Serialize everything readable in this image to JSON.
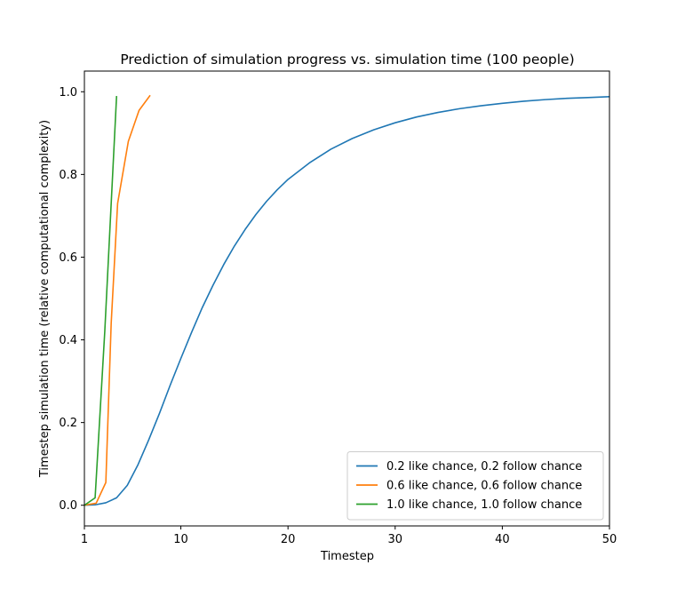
{
  "chart_data": {
    "type": "line",
    "title": "Prediction of simulation progress vs. simulation time (100 people)",
    "xlabel": "Timestep",
    "ylabel": "Timestep simulation time (relative computational complexity)",
    "xlim": [
      1,
      50
    ],
    "ylim": [
      -0.05,
      1.05
    ],
    "x_ticks": [
      1,
      10,
      20,
      30,
      40,
      50
    ],
    "y_ticks": [
      0.0,
      0.2,
      0.4,
      0.6,
      0.8,
      1.0
    ],
    "y_tick_labels": [
      "0.0",
      "0.2",
      "0.4",
      "0.6",
      "0.8",
      "1.0"
    ],
    "legend_position": "lower-right",
    "series": [
      {
        "name": "0.2 like chance, 0.2 follow chance",
        "color": "#1f77b4",
        "x": [
          1,
          2,
          3,
          4,
          5,
          6,
          7,
          8,
          9,
          10,
          11,
          12,
          13,
          14,
          15,
          16,
          17,
          18,
          19,
          20,
          22,
          24,
          26,
          28,
          30,
          32,
          34,
          36,
          38,
          40,
          42,
          44,
          46,
          48,
          50
        ],
        "y": [
          0.0,
          0.001,
          0.006,
          0.018,
          0.048,
          0.098,
          0.158,
          0.222,
          0.29,
          0.355,
          0.418,
          0.478,
          0.532,
          0.582,
          0.627,
          0.667,
          0.703,
          0.735,
          0.763,
          0.788,
          0.828,
          0.861,
          0.887,
          0.908,
          0.925,
          0.939,
          0.95,
          0.959,
          0.966,
          0.972,
          0.977,
          0.981,
          0.984,
          0.986,
          0.988
        ]
      },
      {
        "name": "0.6 like chance, 0.6 follow chance",
        "color": "#ff7f0e",
        "x": [
          1,
          2.1,
          3.0,
          3.5,
          4.1,
          5.1,
          6.1,
          7.1
        ],
        "y": [
          0.0,
          0.005,
          0.055,
          0.44,
          0.73,
          0.88,
          0.955,
          0.99
        ]
      },
      {
        "name": "1.0 like chance, 1.0 follow chance",
        "color": "#2ca02c",
        "x": [
          1,
          2.0,
          2.9,
          4.0
        ],
        "y": [
          0.0,
          0.018,
          0.42,
          0.988
        ]
      }
    ]
  }
}
